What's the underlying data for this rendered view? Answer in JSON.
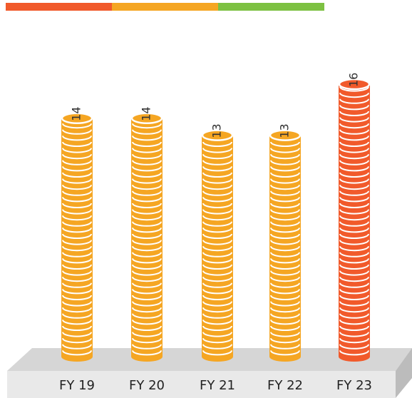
{
  "chart_data": {
    "type": "coin-stack",
    "categories": [
      "FY 19",
      "FY 20",
      "FY 21",
      "FY 22",
      "FY 23"
    ],
    "values": [
      14,
      14,
      13,
      13,
      16
    ],
    "colors": [
      "#f5a623",
      "#f5a623",
      "#f5a623",
      "#f5a623",
      "#f15a2b"
    ]
  }
}
